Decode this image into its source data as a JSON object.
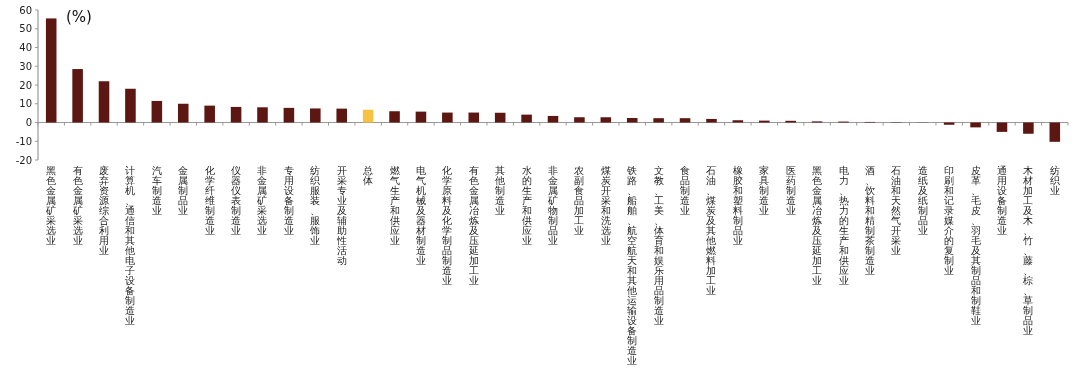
{
  "chart_data": {
    "type": "bar",
    "ylabel": "(%)",
    "categories": [
      "黑色金属矿采选业",
      "有色金属矿采选业",
      "废弃资源综合利用业",
      "计算机、通信和其他电子设备制造业",
      "汽车制造业",
      "金属制品业",
      "化学纤维制造业",
      "仪器仪表制造业",
      "非金属矿采选业",
      "专用设备制造业",
      "纺织服装、服饰业",
      "开采专业及辅助性活动",
      "总体",
      "燃气生产和供应业",
      "电气机械及器材制造业",
      "化学原料及化学制品制造业",
      "有色金属冶炼及压延加工业",
      "其他制造业",
      "水的生产和供应业",
      "非金属矿物制品业",
      "农副食品加工业",
      "煤炭开采和洗选业",
      "铁路、船舶、航空航天和其他运输设备制造业",
      "文教、工美、体育和娱乐用品制造业",
      "食品制造业",
      "石油、煤炭及其他燃料加工业",
      "橡胶和塑料制品业",
      "家具制造业",
      "医药制造业",
      "黑色金属冶炼及压延加工业",
      "电力、热力的生产和供应业",
      "酒、饮料和精制茶制造业",
      "石油和天然气开采业",
      "造纸及纸制品业",
      "印刷和记录媒介的复制业",
      "皮革、毛皮、羽毛及其制品和制鞋业",
      "通用设备制造业",
      "木材加工及木、竹、藤、棕、草制品业",
      "纺织业"
    ],
    "values": [
      55.5,
      28.5,
      22,
      18,
      11.5,
      10,
      9,
      8.3,
      8.1,
      7.8,
      7.5,
      7.4,
      6.8,
      6,
      5.8,
      5.3,
      5.3,
      5.2,
      4.2,
      3.5,
      2.8,
      2.8,
      2.4,
      2.3,
      2.3,
      1.9,
      1.2,
      1,
      0.9,
      0.6,
      0.5,
      0.3,
      0.2,
      0.1,
      -1.2,
      -2.6,
      -5,
      -6,
      -10.3
    ],
    "colors": [
      "#5c1713",
      "#5c1713",
      "#5c1713",
      "#5c1713",
      "#5c1713",
      "#5c1713",
      "#5c1713",
      "#5c1713",
      "#5c1713",
      "#5c1713",
      "#5c1713",
      "#5c1713",
      "#f5c242",
      "#5c1713",
      "#5c1713",
      "#5c1713",
      "#5c1713",
      "#5c1713",
      "#5c1713",
      "#5c1713",
      "#5c1713",
      "#5c1713",
      "#5c1713",
      "#5c1713",
      "#5c1713",
      "#5c1713",
      "#5c1713",
      "#5c1713",
      "#5c1713",
      "#5c1713",
      "#5c1713",
      "#5c1713",
      "#5c1713",
      "#5c1713",
      "#5c1713",
      "#5c1713",
      "#5c1713",
      "#5c1713",
      "#5c1713"
    ],
    "ylim": [
      -20,
      60
    ],
    "yticks": [
      -20,
      -10,
      0,
      10,
      20,
      30,
      40,
      50,
      60
    ]
  }
}
